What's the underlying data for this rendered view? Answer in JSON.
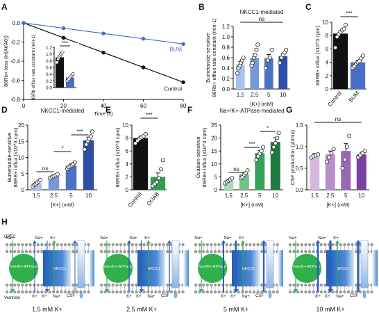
{
  "chart_data": [
    {
      "panel": "A",
      "type": "line",
      "xlabel": "Time (s)",
      "ylabel": "86Rb+ loss (ln(At/A0))",
      "xlim": [
        0,
        80
      ],
      "ylim": [
        -0.8,
        0.0
      ],
      "xticks": [
        0,
        20,
        40,
        60,
        80
      ],
      "yticks": [
        0.0,
        -0.2,
        -0.4,
        -0.6,
        -0.8
      ],
      "series": [
        {
          "name": "Control",
          "color": "#111111",
          "x": [
            0,
            20,
            40,
            60,
            80
          ],
          "y": [
            0.0,
            -0.155,
            -0.31,
            -0.465,
            -0.62
          ]
        },
        {
          "name": "BUM",
          "color": "#4a6fc9",
          "x": [
            0,
            20,
            40,
            60,
            80
          ],
          "y": [
            0.0,
            -0.055,
            -0.11,
            -0.165,
            -0.22
          ]
        }
      ],
      "inset": {
        "type": "bar",
        "ylabel": "86Rb efflux rate constant (min-1)",
        "ylim": [
          0,
          1.2
        ],
        "yticks": [
          0.0,
          0.2,
          0.4,
          0.6,
          0.8,
          1.0,
          1.2
        ],
        "values": [
          0.9,
          0.3
        ],
        "colors": [
          "#111111",
          "#4a6fc9"
        ],
        "points": [
          [
            0.75,
            0.85,
            0.9,
            0.95,
            1.0,
            1.05
          ],
          [
            0.2,
            0.25,
            0.3,
            0.35,
            0.4
          ]
        ],
        "significance": "***"
      }
    },
    {
      "panel": "B",
      "type": "bar",
      "title": "NKCC1-mediated",
      "categories": [
        "1.5",
        "2.5",
        "5",
        "10"
      ],
      "xlabel": "[K+] (mM)",
      "ylabel": "Bumetanide-sensitive 86Rb+ efflux rate constant (min-1)",
      "ylim": [
        0,
        1.2
      ],
      "yticks": [
        0.0,
        0.2,
        0.4,
        0.6,
        0.8,
        1.0,
        1.2
      ],
      "values": [
        0.47,
        0.6,
        0.59,
        0.63
      ],
      "errors": [
        0.06,
        0.07,
        0.07,
        0.05
      ],
      "colors": [
        "#a9c2ea",
        "#7598db",
        "#4c71c6",
        "#2d4ea4"
      ],
      "points": [
        [
          0.3,
          0.4,
          0.45,
          0.5,
          0.55,
          0.6
        ],
        [
          0.45,
          0.5,
          0.6,
          0.65,
          0.75,
          0.85
        ],
        [
          0.4,
          0.55,
          0.6,
          0.75
        ],
        [
          0.5,
          0.6,
          0.65,
          0.7,
          0.75
        ]
      ],
      "significance": [
        {
          "from": 0,
          "to": 3,
          "label": "ns"
        }
      ]
    },
    {
      "panel": "C",
      "type": "bar",
      "categories": [
        "Control",
        "BUM"
      ],
      "ylabel": "86RB+ influx (x10^3 cpm)",
      "ylim": [
        0,
        10
      ],
      "yticks": [
        0,
        2,
        4,
        6,
        8,
        10
      ],
      "values": [
        8.3,
        4.0
      ],
      "errors": [
        0.4,
        0.3
      ],
      "colors": [
        "#111111",
        "#4a6fc9"
      ],
      "points": [
        [
          6.2,
          7.8,
          8.2,
          8.5,
          8.8,
          9.0,
          9.6
        ],
        [
          3.2,
          3.4,
          3.8,
          4.0,
          4.2,
          4.6,
          5.0
        ]
      ],
      "significance": [
        {
          "from": 0,
          "to": 1,
          "label": "***"
        }
      ]
    },
    {
      "panel": "D",
      "type": "bar",
      "title": "NKCC1-mediated",
      "categories": [
        "1.5",
        "2.5",
        "5",
        "10"
      ],
      "xlabel": "[K+] (mM)",
      "ylabel": "Bumetanide-sensitive 86RB+ influx (x10^3 cpm)",
      "ylim": [
        0,
        20
      ],
      "yticks": [
        0,
        5,
        10,
        15,
        20
      ],
      "values": [
        2.0,
        4.2,
        7.5,
        15.3
      ],
      "errors": [
        0.4,
        0.4,
        0.5,
        1.0
      ],
      "colors": [
        "#a9c2ea",
        "#7598db",
        "#4c71c6",
        "#2d4ea4"
      ],
      "points": [
        [
          1.0,
          1.5,
          1.8,
          2.2,
          2.6,
          3.0
        ],
        [
          3.6,
          4.0,
          4.2,
          4.5,
          4.8
        ],
        [
          6.5,
          7.0,
          7.3,
          7.6,
          8.0,
          8.5
        ],
        [
          12.5,
          14.0,
          15.0,
          15.8,
          16.5,
          18.0
        ]
      ],
      "significance": [
        {
          "from": 0,
          "to": 1,
          "label": "ns"
        },
        {
          "from": 1,
          "to": 2,
          "label": "*"
        },
        {
          "from": 2,
          "to": 3,
          "label": "***"
        }
      ]
    },
    {
      "panel": "E",
      "type": "bar",
      "categories": [
        "Control",
        "OUAB"
      ],
      "ylabel": "86RB+ influx (x10^3 cpm)",
      "ylim": [
        0,
        10
      ],
      "yticks": [
        0,
        2,
        4,
        6,
        8,
        10
      ],
      "values": [
        8.0,
        2.0
      ],
      "errors": [
        0.3,
        0.6
      ],
      "colors": [
        "#111111",
        "#2f9e4f"
      ],
      "points": [
        [
          7.2,
          7.6,
          7.9,
          8.1,
          8.3,
          8.6
        ],
        [
          0.6,
          0.9,
          1.2,
          1.8,
          3.2,
          4.6
        ]
      ],
      "significance": [
        {
          "from": 0,
          "to": 1,
          "label": "***"
        }
      ]
    },
    {
      "panel": "F",
      "type": "bar",
      "title": "Na+/K+-ATPase-mediated",
      "categories": [
        "1.5",
        "2.5",
        "5",
        "10"
      ],
      "xlabel": "[K+] (mM)",
      "ylabel": "Ouabain-sensitive 86RB+ influx (x10^3 cpm)",
      "ylim": [
        0,
        25
      ],
      "yticks": [
        0,
        5,
        10,
        15,
        20,
        25
      ],
      "values": [
        3.6,
        6.0,
        14.2,
        18.5
      ],
      "errors": [
        0.5,
        0.7,
        1.0,
        1.7
      ],
      "colors": [
        "#a8dbb5",
        "#6cc287",
        "#33a55a",
        "#1f7a3f"
      ],
      "points": [
        [
          2.5,
          3.0,
          3.5,
          4.0,
          4.5
        ],
        [
          4.5,
          5.0,
          5.8,
          6.5,
          7.5
        ],
        [
          11.5,
          13.0,
          14.0,
          15.0,
          16.5
        ],
        [
          14.5,
          16.5,
          18.0,
          20.0,
          22.0
        ]
      ],
      "significance": [
        {
          "from": 0,
          "to": 1,
          "label": "ns"
        },
        {
          "from": 1,
          "to": 2,
          "label": "***"
        },
        {
          "from": 2,
          "to": 3,
          "label": "*"
        }
      ]
    },
    {
      "panel": "G",
      "type": "bar",
      "categories": [
        "1.5",
        "2.5",
        "5",
        "10"
      ],
      "xlabel": "[K+] (mM)",
      "ylabel": "CSF production (μl/min)",
      "ylim": [
        0,
        1.5
      ],
      "yticks": [
        0.0,
        0.5,
        1.0,
        1.5
      ],
      "values": [
        0.8,
        0.82,
        0.9,
        0.82
      ],
      "errors": [
        0.04,
        0.08,
        0.17,
        0.05
      ],
      "colors": [
        "#d6b8de",
        "#b88fca",
        "#9966b6",
        "#7b3fa0"
      ],
      "points": [
        [
          0.75,
          0.78,
          0.8,
          0.82
        ],
        [
          0.65,
          0.75,
          0.85,
          0.95
        ],
        [
          0.5,
          0.7,
          1.0,
          1.25
        ],
        [
          0.75,
          0.8,
          0.85,
          0.9
        ]
      ],
      "significance": [
        {
          "from": 0,
          "to": 3,
          "label": "ns"
        }
      ]
    }
  ],
  "panel_labels": [
    "A",
    "B",
    "C",
    "D",
    "E",
    "F",
    "G",
    "H"
  ],
  "schematic": {
    "label_cpec": "CPEC",
    "label_ventricle": "Ventricle",
    "label_pump": "Na+/K+-ATPase",
    "label_nkcc1": "NKCC1",
    "label_csf": "CSF",
    "ion_na": "Na+",
    "ion_k": "K+",
    "conditions": [
      "1.5 mM K+",
      "2.5 mM K+",
      "5 mM K+",
      "10 mM K+"
    ],
    "pump_color": "#2fb04c",
    "nkcc1_color": "#2f6fbf"
  }
}
